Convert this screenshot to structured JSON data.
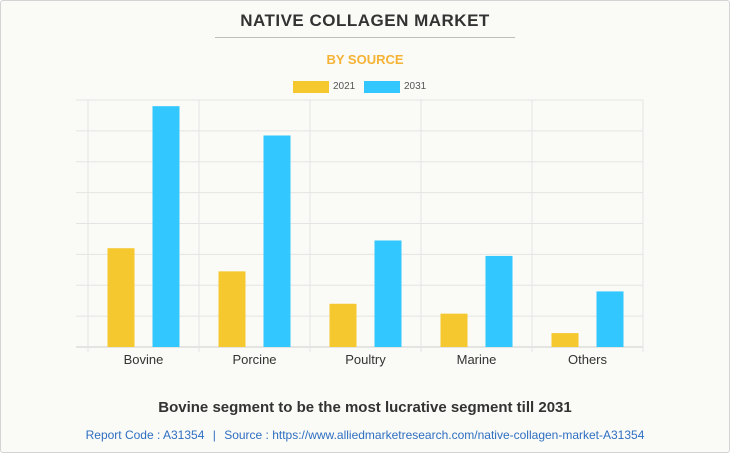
{
  "title": "NATIVE COLLAGEN MARKET",
  "subtitle": "BY SOURCE",
  "colors": {
    "series_2021": "#f5c830",
    "series_2031": "#33c7ff",
    "title": "#333333",
    "subtitle": "#f5b335",
    "footer_link": "#2e6fc2",
    "grid": "#e4e4e4",
    "background": "#fafaf6"
  },
  "chart_data": {
    "type": "bar",
    "categories": [
      "Bovine",
      "Porcine",
      "Poultry",
      "Marine",
      "Others"
    ],
    "series": [
      {
        "name": "2021",
        "values": [
          3.2,
          2.45,
          1.4,
          1.08,
          0.45
        ]
      },
      {
        "name": "2031",
        "values": [
          7.8,
          6.85,
          3.45,
          2.95,
          1.8
        ]
      }
    ],
    "ylim": [
      0,
      8
    ],
    "y_tick_step": 1,
    "y_tick_labels_shown": false,
    "grid": true,
    "legend_position": "top-center"
  },
  "headline": "Bovine segment to be the most lucrative segment till 2031",
  "footer": {
    "report_code_text": "Report Code : A31354",
    "separator": "|",
    "source_text": "Source : https://www.alliedmarketresearch.com/native-collagen-market-A31354"
  }
}
